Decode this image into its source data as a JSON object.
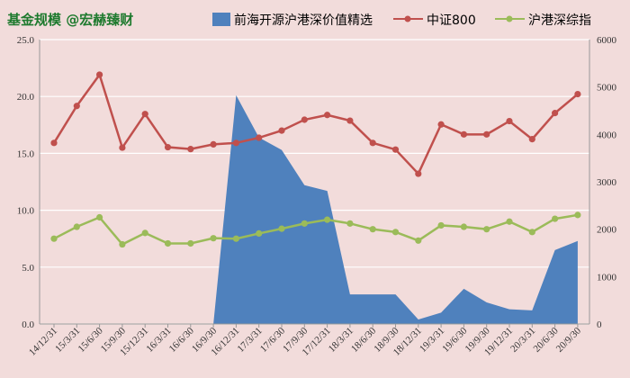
{
  "chart_data": {
    "type": "area+line",
    "title": "基金规模 @宏赫臻财",
    "x": [
      "14/12/31",
      "15/3/31",
      "15/6/30",
      "15/9/30",
      "15/12/31",
      "16/3/31",
      "16/6/30",
      "16/9/30",
      "16/12/31",
      "17/3/31",
      "17/6/30",
      "17/9/30",
      "17/12/31",
      "18/3/31",
      "18/6/30",
      "18/9/30",
      "18/12/31",
      "19/3/31",
      "19/6/30",
      "19/9/30",
      "19/12/31",
      "20/3/31",
      "20/6/30",
      "20/9/30"
    ],
    "left_axis": {
      "min": 0,
      "max": 25,
      "ticks": [
        "0.0",
        "5.0",
        "10.0",
        "15.0",
        "20.0",
        "25.0"
      ]
    },
    "right_axis": {
      "min": 0,
      "max": 6000,
      "ticks": [
        "0",
        "1000",
        "2000",
        "3000",
        "4000",
        "5000",
        "6000"
      ]
    },
    "series": [
      {
        "name": "前海开源沪港深价值精选",
        "type": "area",
        "axis": "left",
        "color": "#4f81bd",
        "values": [
          0,
          0,
          0,
          0,
          0,
          0,
          0,
          0,
          20.1,
          16.4,
          15.3,
          12.2,
          11.7,
          2.6,
          2.6,
          2.6,
          0.4,
          1.0,
          3.1,
          1.9,
          1.3,
          1.2,
          6.5,
          7.3
        ]
      },
      {
        "name": "中证800",
        "type": "line",
        "axis": "right",
        "color": "#c0504d",
        "values": [
          3820,
          4600,
          5260,
          3720,
          4430,
          3730,
          3690,
          3790,
          3820,
          3930,
          4080,
          4310,
          4410,
          4290,
          3820,
          3680,
          3170,
          4210,
          4000,
          4000,
          4280,
          3900,
          4450,
          4850
        ]
      },
      {
        "name": "沪港深综指",
        "type": "line",
        "axis": "right",
        "color": "#9bbb59",
        "values": [
          1800,
          2050,
          2250,
          1680,
          1920,
          1700,
          1700,
          1810,
          1800,
          1910,
          2010,
          2120,
          2200,
          2120,
          2000,
          1940,
          1760,
          2080,
          2050,
          2000,
          2160,
          1940,
          2220,
          2300
        ]
      }
    ],
    "legend_position": "top",
    "grid": true
  }
}
